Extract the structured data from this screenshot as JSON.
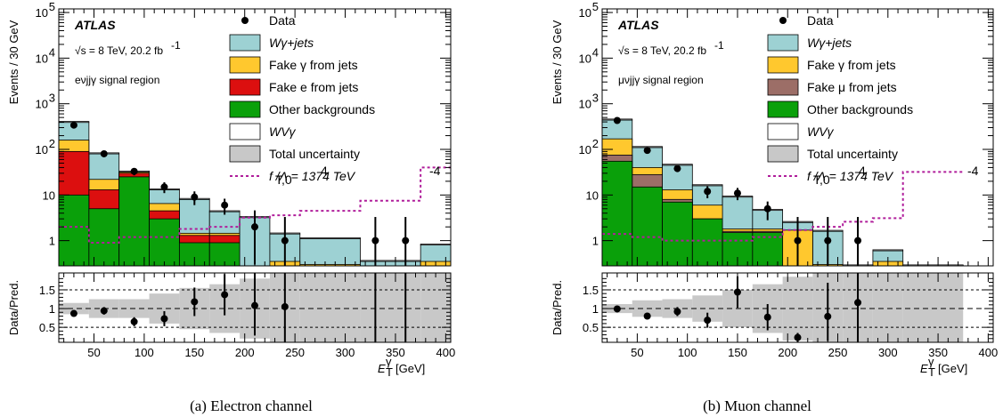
{
  "colors": {
    "wgamma": "#9dd1d3",
    "fake_gamma": "#ffc82e",
    "fake_e": "#dc0f0f",
    "fake_mu": "#9c6e67",
    "other": "#0aa00a",
    "uncertainty": "#c8c8c8",
    "aqgc": "#b01e9b",
    "data": "#000000"
  },
  "chart_data": [
    {
      "type": "bar",
      "caption": "(a) Electron channel",
      "atlas_label": "ATLAS",
      "energy_lumi": "√s = 8 TeV, 20.2 fb",
      "energy_lumi_sup": "-1",
      "region": "eνjjγ signal region",
      "ylabel": "Events / 30 GeV",
      "ratio_ylabel": "Data/Pred.",
      "xlabel": "E",
      "xlabel_sub": "T",
      "xlabel_sup": "γ",
      "xlabel_unit": "[GeV]",
      "xlim": [
        15,
        405
      ],
      "ylim": [
        0.28,
        120000
      ],
      "yscale": "log",
      "ratio_ylim": [
        0.1,
        1.95
      ],
      "bin_edges": [
        15,
        45,
        75,
        105,
        135,
        165,
        195,
        225,
        255,
        315,
        375,
        405
      ],
      "x_ticks": [
        "50",
        "100",
        "150",
        "200",
        "250",
        "300",
        "350",
        "400"
      ],
      "y_ticks": [
        "1",
        "10",
        "10",
        "10",
        "10",
        "10"
      ],
      "y_tick_sups": [
        "",
        "",
        "2",
        "3",
        "4",
        "5"
      ],
      "ratio_ticks": [
        "0.5",
        "1",
        "1.5"
      ],
      "legend": {
        "data": "Data",
        "wgamma": "Wγ+jets",
        "fake_gamma": "Fake γ from jets",
        "fake_lep": "Fake e from jets",
        "other": "Other backgrounds",
        "signal": "WVγ",
        "unc": "Total uncertainty",
        "aqgc": "f    /Λ  = 1374 TeV",
        "aqgc_sub": "T,0",
        "aqgc_sup1": "4",
        "aqgc_sup2": "-4"
      },
      "stack": {
        "other": [
          10,
          5,
          25,
          3,
          0.9,
          0.9,
          0.28,
          0.28,
          0.28,
          0.28,
          0.28
        ],
        "fake_lep": [
          90,
          13,
          30,
          4.5,
          1.3,
          1.3,
          0.28,
          0.28,
          0.28,
          0.28,
          0.28
        ],
        "fake_gamma": [
          160,
          22,
          32,
          6.5,
          1.45,
          1.45,
          0.28,
          0.35,
          0.3,
          0.28,
          0.35
        ],
        "wgamma": [
          390,
          80,
          32,
          13,
          8,
          4.3,
          3.2,
          1.4,
          1.1,
          0.35,
          0.8
        ]
      },
      "aqgc_line": [
        2,
        0.9,
        1.2,
        1.2,
        1.8,
        2.0,
        3.2,
        3.6,
        4.5,
        7.5,
        40
      ],
      "data_points": [
        {
          "x": 30,
          "y": 340,
          "err_lo": 20,
          "err_hi": 20,
          "ratio": 0.87,
          "r_lo": 0.06,
          "r_hi": 0.06
        },
        {
          "x": 60,
          "y": 80,
          "err_lo": 9,
          "err_hi": 9,
          "ratio": 0.94,
          "r_lo": 0.1,
          "r_hi": 0.1
        },
        {
          "x": 90,
          "y": 33,
          "err_lo": 6,
          "err_hi": 6,
          "ratio": 0.65,
          "r_lo": 0.12,
          "r_hi": 0.12
        },
        {
          "x": 120,
          "y": 15,
          "err_lo": 4,
          "err_hi": 4,
          "ratio": 0.73,
          "r_lo": 0.2,
          "r_hi": 0.2
        },
        {
          "x": 150,
          "y": 9,
          "err_lo": 3,
          "err_hi": 3,
          "ratio": 1.18,
          "r_lo": 0.38,
          "r_hi": 0.38
        },
        {
          "x": 180,
          "y": 6,
          "err_lo": 2.3,
          "err_hi": 2.3,
          "ratio": 1.37,
          "r_lo": 0.55,
          "r_hi": 0.55
        },
        {
          "x": 210,
          "y": 2,
          "err_lo": 1.7,
          "err_hi": 2.6,
          "ratio": 1.08,
          "r_lo": 0.8,
          "r_hi": 0.9
        },
        {
          "x": 240,
          "y": 1,
          "err_lo": 0.72,
          "err_hi": 2.3,
          "ratio": 1.05,
          "r_lo": 1.0,
          "r_hi": 1.0
        },
        {
          "x": 330,
          "y": 1,
          "err_lo": 0.72,
          "err_hi": 2.3,
          "ratio": null,
          "r_lo": 0,
          "r_hi": 0
        },
        {
          "x": 360,
          "y": 1,
          "err_lo": 0.72,
          "err_hi": 2.3,
          "ratio": null,
          "r_lo": 0,
          "r_hi": 0
        }
      ],
      "ratio_unc": [
        0.15,
        0.25,
        0.25,
        0.4,
        0.55,
        0.65,
        0.8,
        1.0,
        1.0,
        1.0,
        1.0
      ],
      "ratio_lines": [
        {
          "x": 330
        },
        {
          "x": 360
        }
      ]
    },
    {
      "type": "bar",
      "caption": "(b) Muon channel",
      "atlas_label": "ATLAS",
      "energy_lumi": "√s = 8 TeV, 20.2 fb",
      "energy_lumi_sup": "-1",
      "region": "μνjjγ signal region",
      "ylabel": "Events / 30 GeV",
      "ratio_ylabel": "Data/Pred.",
      "xlabel": "E",
      "xlabel_sub": "T",
      "xlabel_sup": "γ",
      "xlabel_unit": "[GeV]",
      "xlim": [
        15,
        405
      ],
      "ylim": [
        0.28,
        120000
      ],
      "yscale": "log",
      "ratio_ylim": [
        0.1,
        1.95
      ],
      "bin_edges": [
        15,
        45,
        75,
        105,
        135,
        165,
        195,
        225,
        255,
        285,
        315,
        375
      ],
      "x_ticks": [
        "50",
        "100",
        "150",
        "200",
        "250",
        "300",
        "350",
        "400"
      ],
      "y_ticks": [
        "1",
        "10",
        "10",
        "10",
        "10",
        "10"
      ],
      "y_tick_sups": [
        "",
        "",
        "2",
        "3",
        "4",
        "5"
      ],
      "ratio_ticks": [
        "0.5",
        "1",
        "1.5"
      ],
      "legend": {
        "data": "Data",
        "wgamma": "Wγ+jets",
        "fake_gamma": "Fake γ from jets",
        "fake_lep": "Fake μ from jets",
        "other": "Other backgrounds",
        "signal": "WVγ",
        "unc": "Total uncertainty",
        "aqgc": "f    /Λ  = 1374 TeV",
        "aqgc_sub": "T,0",
        "aqgc_sup1": "4",
        "aqgc_sup2": "-4"
      },
      "stack": {
        "other": [
          55,
          15,
          7,
          3,
          1.5,
          1.5,
          0.28,
          0.28,
          0.28,
          0.28,
          0.28
        ],
        "fake_lep": [
          75,
          28,
          8,
          3,
          1.6,
          1.6,
          0.28,
          0.28,
          0.28,
          0.28,
          0.28
        ],
        "fake_gamma": [
          170,
          40,
          13,
          6,
          1.8,
          1.8,
          1.7,
          0.3,
          0.28,
          0.35,
          0.28
        ],
        "wgamma": [
          440,
          110,
          45,
          16,
          9,
          4.6,
          2.5,
          1.6,
          0.28,
          0.6,
          0.28
        ]
      },
      "aqgc_line": [
        1.4,
        1.2,
        1.0,
        1.0,
        1.0,
        1.2,
        1.7,
        2.0,
        2.6,
        3.1,
        32
      ],
      "data_points": [
        {
          "x": 30,
          "y": 430,
          "err_lo": 20,
          "err_hi": 20,
          "ratio": 0.99,
          "r_lo": 0.05,
          "r_hi": 0.05
        },
        {
          "x": 60,
          "y": 95,
          "err_lo": 10,
          "err_hi": 10,
          "ratio": 0.8,
          "r_lo": 0.08,
          "r_hi": 0.08
        },
        {
          "x": 90,
          "y": 38,
          "err_lo": 6,
          "err_hi": 6,
          "ratio": 0.92,
          "r_lo": 0.12,
          "r_hi": 0.12
        },
        {
          "x": 120,
          "y": 12,
          "err_lo": 3.5,
          "err_hi": 3.5,
          "ratio": 0.69,
          "r_lo": 0.2,
          "r_hi": 0.2
        },
        {
          "x": 150,
          "y": 11,
          "err_lo": 3.3,
          "err_hi": 3.3,
          "ratio": 1.44,
          "r_lo": 0.42,
          "r_hi": 0.42
        },
        {
          "x": 180,
          "y": 5,
          "err_lo": 2.2,
          "err_hi": 2.2,
          "ratio": 0.77,
          "r_lo": 0.35,
          "r_hi": 0.35
        },
        {
          "x": 210,
          "y": 1,
          "err_lo": 0.72,
          "err_hi": 2.3,
          "ratio": 0.23,
          "r_lo": 0.12,
          "r_hi": 0.12
        },
        {
          "x": 240,
          "y": 1,
          "err_lo": 0.72,
          "err_hi": 2.3,
          "ratio": 0.79,
          "r_lo": 0.65,
          "r_hi": 0.9
        },
        {
          "x": 270,
          "y": 1,
          "err_lo": 0.72,
          "err_hi": 2.3,
          "ratio": 1.16,
          "r_lo": 1.1,
          "r_hi": 1.0
        }
      ],
      "ratio_unc": [
        0.12,
        0.22,
        0.25,
        0.35,
        0.5,
        0.65,
        0.85,
        1.0,
        1.0,
        1.0,
        1.0
      ],
      "ratio_lines": []
    }
  ]
}
